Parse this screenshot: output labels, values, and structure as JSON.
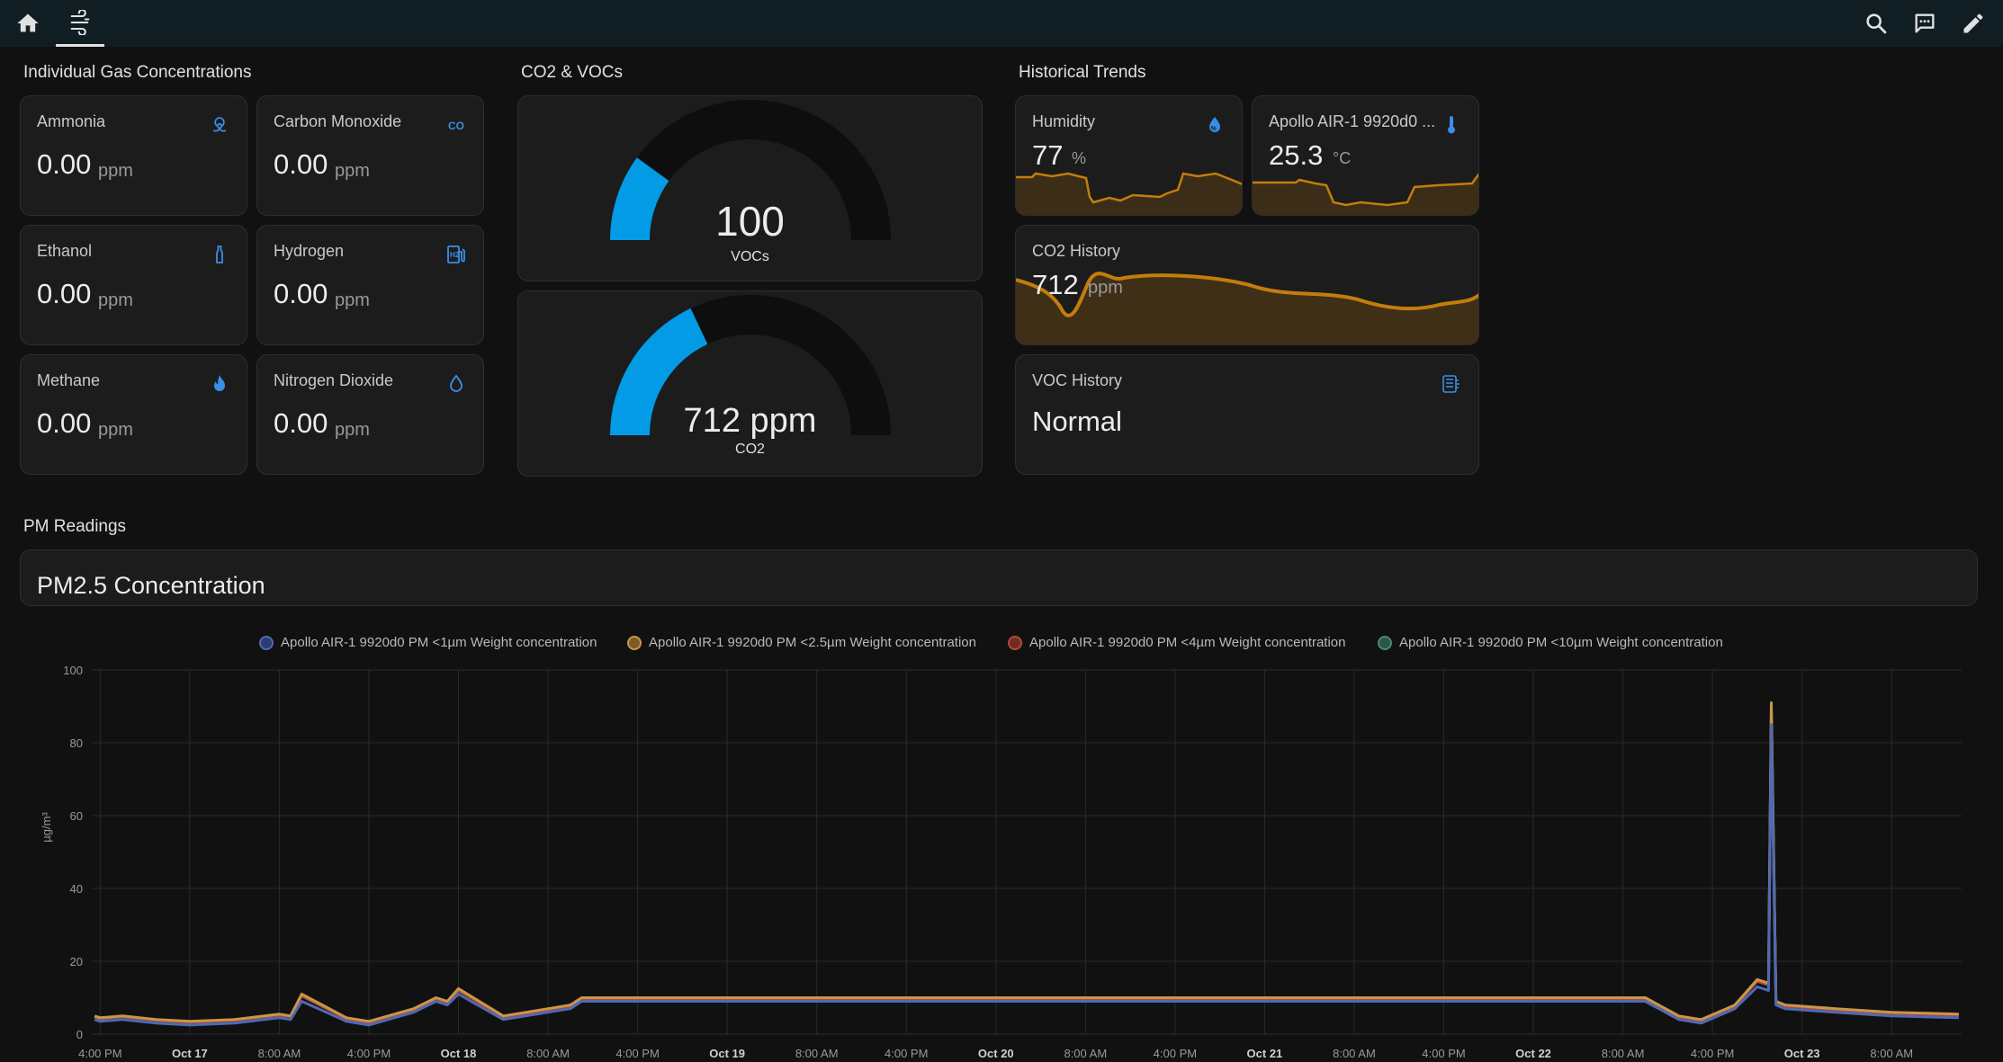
{
  "nav": {
    "tabs": [
      {
        "icon": "home-icon"
      },
      {
        "icon": "air-filter-icon"
      }
    ],
    "actions": [
      {
        "icon": "search-icon"
      },
      {
        "icon": "assist-chat-icon"
      },
      {
        "icon": "edit-pencil-icon"
      }
    ]
  },
  "gas": {
    "title": "Individual Gas Concentrations",
    "cards": [
      {
        "name": "Ammonia",
        "value": "0.00",
        "unit": "ppm",
        "icon": "biohazard-icon"
      },
      {
        "name": "Carbon Monoxide",
        "value": "0.00",
        "unit": "ppm",
        "icon": "molecule-co-icon"
      },
      {
        "name": "Ethanol",
        "value": "0.00",
        "unit": "ppm",
        "icon": "bottle-icon"
      },
      {
        "name": "Hydrogen",
        "value": "0.00",
        "unit": "ppm",
        "icon": "hydrogen-station-icon"
      },
      {
        "name": "Methane",
        "value": "0.00",
        "unit": "ppm",
        "icon": "fire-icon"
      },
      {
        "name": "Nitrogen Dioxide",
        "value": "0.00",
        "unit": "ppm",
        "icon": "water-drop-icon"
      }
    ]
  },
  "co2voc": {
    "title": "CO2 & VOCs",
    "voc_gauge": {
      "value": "100",
      "name": "VOCs",
      "fraction": 0.2
    },
    "co2_gauge": {
      "value": "712 ppm",
      "name": "CO2",
      "fraction": 0.36
    }
  },
  "history": {
    "title": "Historical Trends",
    "humidity": {
      "name": "Humidity",
      "value": "77",
      "unit": "%",
      "icon": "water-percent-icon"
    },
    "temperature": {
      "name": "Apollo AIR-1 9920d0 ...",
      "value": "25.3",
      "unit": "°C",
      "icon": "thermometer-icon"
    },
    "co2": {
      "name": "CO2 History",
      "value": "712",
      "unit": "ppm"
    },
    "voc": {
      "name": "VOC History",
      "value": "Normal",
      "icon": "air-filter-icon"
    }
  },
  "pm": {
    "section_title": "PM Readings",
    "card_title": "PM2.5 Concentration"
  },
  "colors": {
    "accent": "#039be5",
    "trend": "#ff9800",
    "pm1": "#4e6ab5",
    "pm25": "#c9964a",
    "pm4": "#b24a3a",
    "pm10": "#4a8a72"
  },
  "chart_data": {
    "type": "line",
    "ylabel": "µg/m³",
    "ylim": [
      0,
      100
    ],
    "yticks": [
      "0",
      "20",
      "40",
      "60",
      "80",
      "100"
    ],
    "xticks": [
      "4:00 PM",
      "Oct 17",
      "8:00 AM",
      "4:00 PM",
      "Oct 18",
      "8:00 AM",
      "4:00 PM",
      "Oct 19",
      "8:00 AM",
      "4:00 PM",
      "Oct 20",
      "8:00 AM",
      "4:00 PM",
      "Oct 21",
      "8:00 AM",
      "4:00 PM",
      "Oct 22",
      "8:00 AM",
      "4:00 PM",
      "Oct 23",
      "8:00 AM"
    ],
    "legend_position": "top",
    "series": [
      {
        "name": "Apollo AIR-1 9920d0 PM <1µm Weight concentration",
        "x": [
          "2024-10-16 15:30",
          "2024-10-16 16:00",
          "2024-10-16 18:00",
          "2024-10-16 21:00",
          "2024-10-17 00:00",
          "2024-10-17 04:00",
          "2024-10-17 08:00",
          "2024-10-17 09:00",
          "2024-10-17 10:00",
          "2024-10-17 14:00",
          "2024-10-17 16:00",
          "2024-10-17 20:00",
          "2024-10-17 22:00",
          "2024-10-17 23:00",
          "2024-10-18 00:00",
          "2024-10-18 04:00",
          "2024-10-18 08:00",
          "2024-10-18 10:00",
          "2024-10-18 11:00",
          "2024-10-22 10:00",
          "2024-10-22 13:00",
          "2024-10-22 15:00",
          "2024-10-22 18:00",
          "2024-10-22 20:00",
          "2024-10-22 21:00",
          "2024-10-22 21:15",
          "2024-10-22 21:40",
          "2024-10-22 22:30",
          "2024-10-23 03:00",
          "2024-10-23 08:00",
          "2024-10-23 14:00"
        ],
        "y": [
          4,
          3.5,
          4,
          3,
          2.5,
          3,
          4.5,
          4,
          9,
          3.5,
          2.5,
          6,
          9,
          8,
          11,
          4,
          6,
          7,
          9,
          9,
          4,
          3,
          7,
          13,
          12,
          85,
          8,
          7,
          6,
          5,
          4.5
        ]
      },
      {
        "name": "Apollo AIR-1 9920d0 PM <2.5µm Weight concentration",
        "x": [
          "2024-10-16 15:30",
          "2024-10-16 16:00",
          "2024-10-16 18:00",
          "2024-10-16 21:00",
          "2024-10-17 00:00",
          "2024-10-17 04:00",
          "2024-10-17 08:00",
          "2024-10-17 09:00",
          "2024-10-17 10:00",
          "2024-10-17 14:00",
          "2024-10-17 16:00",
          "2024-10-17 20:00",
          "2024-10-17 22:00",
          "2024-10-17 23:00",
          "2024-10-18 00:00",
          "2024-10-18 04:00",
          "2024-10-18 08:00",
          "2024-10-18 10:00",
          "2024-10-18 11:00",
          "2024-10-22 10:00",
          "2024-10-22 13:00",
          "2024-10-22 15:00",
          "2024-10-22 18:00",
          "2024-10-22 20:00",
          "2024-10-22 21:00",
          "2024-10-22 21:15",
          "2024-10-22 21:40",
          "2024-10-22 22:30",
          "2024-10-23 03:00",
          "2024-10-23 08:00",
          "2024-10-23 14:00"
        ],
        "y": [
          5,
          4.5,
          5,
          4,
          3.5,
          4,
          5.5,
          5,
          11,
          4.5,
          3.5,
          7,
          10,
          9,
          12.5,
          5,
          7,
          8,
          10,
          10,
          5,
          4,
          8,
          15,
          14,
          91,
          9,
          8,
          7,
          6,
          5.5
        ]
      },
      {
        "name": "Apollo AIR-1 9920d0 PM <4µm Weight concentration",
        "x": [
          "2024-10-16 15:30",
          "2024-10-16 16:00",
          "2024-10-16 18:00",
          "2024-10-16 21:00",
          "2024-10-17 00:00",
          "2024-10-17 04:00",
          "2024-10-17 08:00",
          "2024-10-17 09:00",
          "2024-10-17 10:00",
          "2024-10-17 14:00",
          "2024-10-17 16:00",
          "2024-10-17 20:00",
          "2024-10-17 22:00",
          "2024-10-17 23:00",
          "2024-10-18 00:00",
          "2024-10-18 04:00",
          "2024-10-18 08:00",
          "2024-10-18 10:00",
          "2024-10-18 11:00",
          "2024-10-22 10:00",
          "2024-10-22 13:00",
          "2024-10-22 15:00",
          "2024-10-22 18:00",
          "2024-10-22 20:00",
          "2024-10-22 21:00",
          "2024-10-22 21:15",
          "2024-10-22 21:40",
          "2024-10-22 22:30",
          "2024-10-23 03:00",
          "2024-10-23 08:00",
          "2024-10-23 14:00"
        ],
        "y": [
          4.8,
          4.2,
          4.8,
          3.8,
          3.2,
          3.8,
          5.2,
          4.8,
          10.5,
          4.2,
          3.2,
          6.7,
          9.7,
          8.7,
          12,
          4.7,
          6.7,
          7.7,
          9.7,
          9.7,
          4.7,
          3.7,
          7.7,
          14.5,
          13.5,
          89,
          8.7,
          7.7,
          6.7,
          5.7,
          5.2
        ]
      },
      {
        "name": "Apollo AIR-1 9920d0 PM <10µm Weight concentration",
        "x": [
          "2024-10-16 15:30",
          "2024-10-16 16:00",
          "2024-10-16 18:00",
          "2024-10-16 21:00",
          "2024-10-17 00:00",
          "2024-10-17 04:00",
          "2024-10-17 08:00",
          "2024-10-17 09:00",
          "2024-10-17 10:00",
          "2024-10-17 14:00",
          "2024-10-17 16:00",
          "2024-10-17 20:00",
          "2024-10-17 22:00",
          "2024-10-17 23:00",
          "2024-10-18 00:00",
          "2024-10-18 04:00",
          "2024-10-18 08:00",
          "2024-10-18 10:00",
          "2024-10-18 11:00",
          "2024-10-22 10:00",
          "2024-10-22 13:00",
          "2024-10-22 15:00",
          "2024-10-22 18:00",
          "2024-10-22 20:00",
          "2024-10-22 21:00",
          "2024-10-22 21:15",
          "2024-10-22 21:40",
          "2024-10-22 22:30",
          "2024-10-23 03:00",
          "2024-10-23 08:00",
          "2024-10-23 14:00"
        ],
        "y": [
          4.9,
          4.3,
          4.9,
          3.9,
          3.3,
          3.9,
          5.3,
          4.9,
          10.8,
          4.3,
          3.3,
          6.8,
          9.8,
          8.8,
          12.2,
          4.8,
          6.8,
          7.8,
          9.8,
          9.8,
          4.8,
          3.8,
          7.8,
          14.8,
          13.8,
          90,
          8.8,
          7.8,
          6.8,
          5.8,
          5.3
        ]
      }
    ]
  }
}
